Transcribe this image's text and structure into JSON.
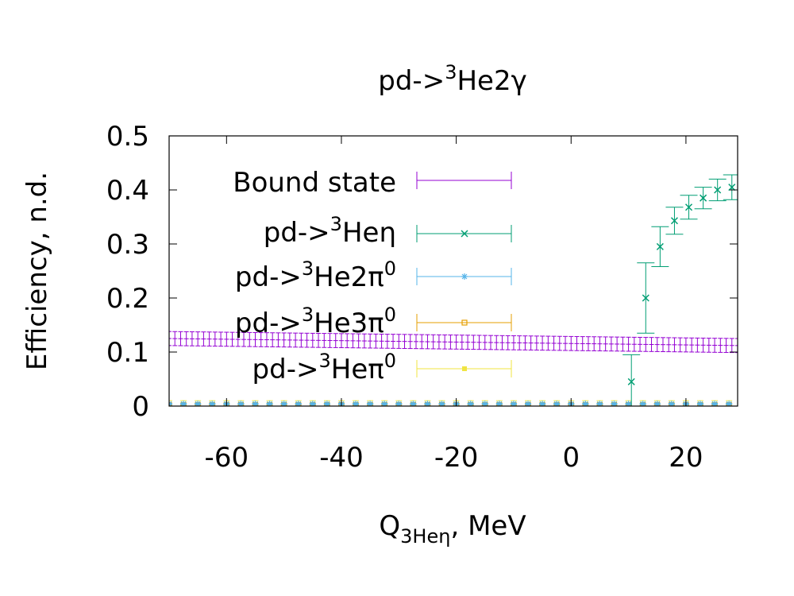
{
  "chart_data": {
    "type": "scatter",
    "title": {
      "base": "pd->",
      "sup": "3",
      "rest": "He2γ"
    },
    "xlabel": {
      "base": "Q",
      "sub": "3Heη",
      "rest": ", MeV"
    },
    "ylabel": "Efficiency, n.d.",
    "xlim": [
      -70,
      29
    ],
    "ylim": [
      0,
      0.5
    ],
    "xticks": [
      -60,
      -40,
      -20,
      0,
      20
    ],
    "xtick_labels": [
      "-60",
      "-40",
      "-20",
      "0",
      "20"
    ],
    "yticks": [
      0,
      0.1,
      0.2,
      0.3,
      0.4,
      0.5
    ],
    "ytick_labels": [
      "0",
      "0.1",
      "0.2",
      "0.3",
      "0.4",
      "0.5"
    ],
    "legend_position": "top-left",
    "series": [
      {
        "name": "Bound state",
        "label": {
          "base": "Bound state",
          "sup": "",
          "rest": "",
          "sup2": ""
        },
        "color": "#9400d3",
        "marker": "plus",
        "x_start": -70,
        "x_step": 1.0,
        "n": 100,
        "y_start": 0.125,
        "y_end": 0.112,
        "err": 0.013
      },
      {
        "name": "pd->3Heη",
        "label": {
          "base": "pd->",
          "sup": "3",
          "rest": "Heη",
          "sup2": ""
        },
        "color": "#009e73",
        "marker": "cross",
        "points": [
          {
            "x": 10.5,
            "y": 0.045,
            "err": 0.05
          },
          {
            "x": 13,
            "y": 0.2,
            "err": 0.065
          },
          {
            "x": 15.5,
            "y": 0.295,
            "err": 0.037
          },
          {
            "x": 18,
            "y": 0.343,
            "err": 0.025
          },
          {
            "x": 20.5,
            "y": 0.368,
            "err": 0.022
          },
          {
            "x": 23,
            "y": 0.385,
            "err": 0.02
          },
          {
            "x": 25.5,
            "y": 0.4,
            "err": 0.02
          },
          {
            "x": 28,
            "y": 0.405,
            "err": 0.023
          }
        ]
      },
      {
        "name": "pd->3He2π0",
        "label": {
          "base": "pd->",
          "sup": "3",
          "rest": "He2π",
          "sup2": "0"
        },
        "color": "#56b4e9",
        "marker": "star",
        "x_start": -70,
        "x_step": 2.5,
        "n": 40,
        "y": 0.004,
        "err": 0.001
      },
      {
        "name": "pd->3He3π0",
        "label": {
          "base": "pd->",
          "sup": "3",
          "rest": "He3π",
          "sup2": "0"
        },
        "color": "#e69f00",
        "marker": "square",
        "x_start": -70,
        "x_step": 2.5,
        "n": 40,
        "y": 0.002,
        "err": 0.001
      },
      {
        "name": "pd->3Heπ0",
        "label": {
          "base": "pd->",
          "sup": "3",
          "rest": "Heπ",
          "sup2": "0"
        },
        "color": "#f0e442",
        "marker": "filled-square",
        "x_start": -70,
        "x_step": 2.5,
        "n": 40,
        "y": 0.002,
        "err": 0.008
      }
    ]
  }
}
